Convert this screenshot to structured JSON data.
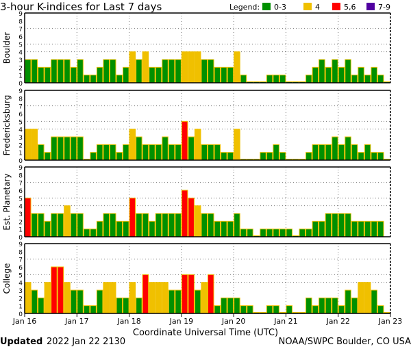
{
  "chart_data": {
    "type": "bar",
    "title": "3-hour K-indices for Last 7 days",
    "legend": {
      "label": "Legend:",
      "position": "top-right",
      "entries": [
        {
          "label": "0-3",
          "color": "#009000"
        },
        {
          "label": "4",
          "color": "#f0c000"
        },
        {
          "label": "5,6",
          "color": "#ff0000"
        },
        {
          "label": "7-9",
          "color": "#5000a0"
        }
      ]
    },
    "bar_outline_color": "#f0c000",
    "xlabel": "Coordinate Universal Time (UTC)",
    "x_tick_labels": [
      "Jan 16",
      "Jan 17",
      "Jan 18",
      "Jan 19",
      "Jan 20",
      "Jan 21",
      "Jan 22",
      "Jan 23"
    ],
    "y_tick_labels": [
      "0",
      "1",
      "2",
      "3",
      "4",
      "5",
      "6",
      "7",
      "8",
      "9"
    ],
    "ylim": [
      0,
      9
    ],
    "gridlines_y": [
      4,
      5,
      7
    ],
    "series": [
      {
        "name": "Boulder",
        "values": [
          3,
          3,
          2,
          2,
          3,
          3,
          3,
          2,
          3,
          1,
          1,
          2,
          3,
          3,
          1,
          2,
          4,
          3,
          4,
          2,
          2,
          3,
          3,
          3,
          4,
          4,
          4,
          3,
          3,
          2,
          2,
          2,
          4,
          1,
          0,
          0,
          0,
          1,
          1,
          1,
          0,
          0,
          0,
          1,
          2,
          3,
          2,
          3,
          2,
          3,
          1,
          2,
          1,
          2,
          1,
          0
        ]
      },
      {
        "name": "Fredericksburg",
        "values": [
          4,
          4,
          2,
          1,
          3,
          3,
          3,
          3,
          3,
          0,
          1,
          2,
          2,
          2,
          1,
          2,
          4,
          3,
          2,
          2,
          2,
          3,
          2,
          2,
          5,
          3,
          4,
          2,
          2,
          2,
          1,
          1,
          4,
          0,
          0,
          0,
          1,
          1,
          2,
          1,
          0,
          0,
          0,
          1,
          2,
          2,
          2,
          3,
          2,
          3,
          2,
          1,
          2,
          1,
          1,
          0
        ]
      },
      {
        "name": "Est. Planetary",
        "values": [
          5,
          3,
          3,
          2,
          3,
          3,
          4,
          3,
          3,
          1,
          1,
          2,
          3,
          3,
          2,
          2,
          5,
          3,
          3,
          2,
          3,
          3,
          3,
          3,
          6,
          5,
          4,
          3,
          3,
          2,
          2,
          2,
          3,
          1,
          1,
          0,
          1,
          1,
          1,
          1,
          1,
          0,
          1,
          1,
          2,
          2,
          3,
          3,
          3,
          3,
          2,
          2,
          2,
          2,
          2,
          null
        ]
      },
      {
        "name": "College",
        "values": [
          4,
          3,
          2,
          4,
          6,
          6,
          4,
          3,
          3,
          1,
          1,
          3,
          4,
          4,
          2,
          2,
          4,
          2,
          5,
          4,
          4,
          4,
          3,
          3,
          5,
          5,
          3,
          4,
          5,
          1,
          2,
          2,
          2,
          1,
          1,
          0,
          0,
          1,
          1,
          0,
          1,
          0,
          0,
          2,
          1,
          2,
          2,
          2,
          1,
          3,
          2,
          4,
          4,
          3,
          1,
          0
        ]
      }
    ]
  },
  "footer": {
    "updated_label": "Updated",
    "updated_time": "2022 Jan 22 2130",
    "source": "NOAA/SWPC Boulder, CO USA"
  }
}
